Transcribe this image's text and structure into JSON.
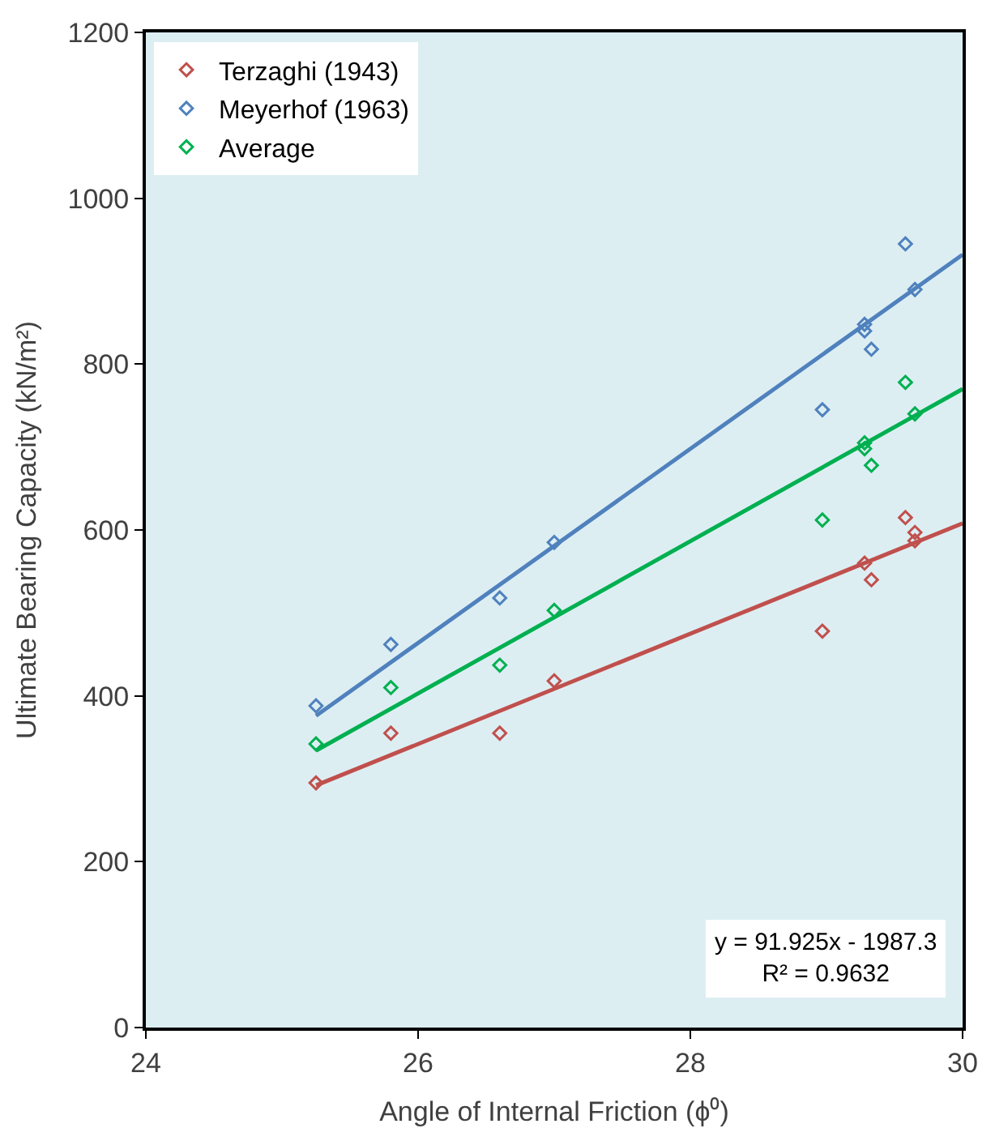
{
  "chart_data": {
    "type": "scatter",
    "xlabel": "Angle of Internal Friction (ϕ⁰)",
    "ylabel": "Ultimate Bearing Capacity (kN/m²)",
    "xlim": [
      24,
      30
    ],
    "xticks": [
      24,
      26,
      28,
      30
    ],
    "ylim": [
      0,
      1200
    ],
    "yticks": [
      0,
      200,
      400,
      600,
      800,
      1000,
      1200
    ],
    "grid": false,
    "legend": "top left",
    "marker": "diamond",
    "series": [
      {
        "name": "Terzaghi (1943)",
        "color": "#c0504d",
        "x": [
          25.25,
          25.8,
          26.6,
          27.0,
          28.97,
          29.28,
          29.33,
          29.58,
          29.65,
          29.65
        ],
        "values": [
          295,
          355,
          355,
          418,
          478,
          560,
          540,
          615,
          597,
          587
        ]
      },
      {
        "name": "Meyerhof (1963)",
        "color": "#4f81bd",
        "x": [
          25.25,
          25.8,
          26.6,
          27.0,
          28.97,
          29.28,
          29.28,
          29.33,
          29.58,
          29.65
        ],
        "values": [
          388,
          462,
          518,
          585,
          745,
          848,
          840,
          818,
          945,
          890
        ]
      },
      {
        "name": "Average",
        "color": "#00b050",
        "x": [
          25.25,
          25.8,
          26.6,
          27.0,
          28.97,
          29.28,
          29.28,
          29.33,
          29.58,
          29.65
        ],
        "values": [
          342,
          410,
          437,
          503,
          612,
          705,
          698,
          678,
          778,
          740
        ]
      },
      {
        "type": "line",
        "color": "#c0504d",
        "marker": "none",
        "x": [
          25.25,
          30
        ],
        "values": [
          292,
          608
        ]
      },
      {
        "type": "line",
        "color": "#4f81bd",
        "marker": "none",
        "x": [
          25.25,
          30
        ],
        "values": [
          376,
          932
        ]
      },
      {
        "type": "line",
        "color": "#00b050",
        "marker": "none",
        "x": [
          25.25,
          30
        ],
        "values": [
          334,
          770
        ]
      }
    ],
    "annotations": [
      "y = 91.925x - 1987.3\nR² = 0.9632"
    ]
  }
}
